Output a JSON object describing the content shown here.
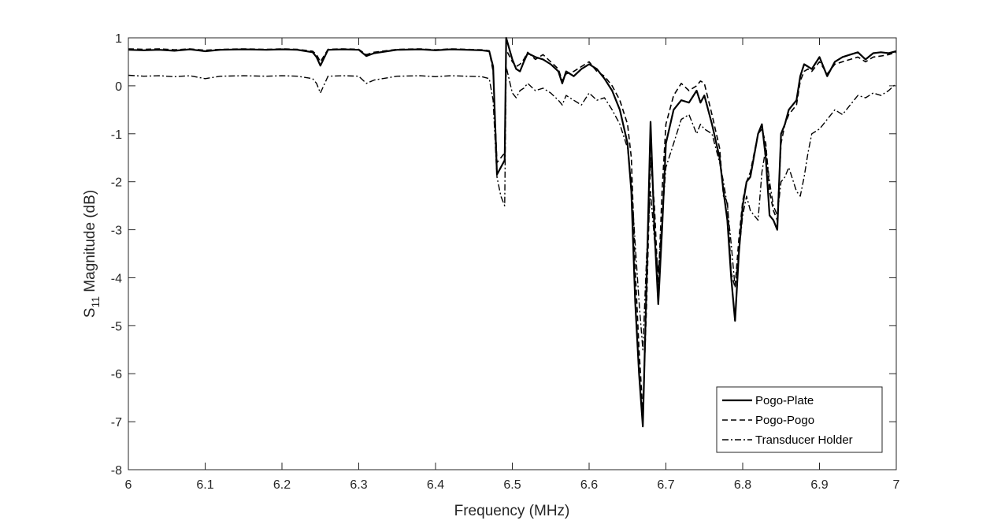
{
  "chart_data": {
    "type": "line",
    "title": "",
    "xlabel": "Frequency (MHz)",
    "ylabel": {
      "base": "S",
      "sub": "11",
      "rest": " Magnitude (dB)"
    },
    "xlim": [
      6,
      7
    ],
    "ylim": [
      -8,
      1
    ],
    "xticks": [
      "6",
      "6.1",
      "6.2",
      "6.3",
      "6.4",
      "6.5",
      "6.6",
      "6.7",
      "6.8",
      "6.9",
      "7"
    ],
    "yticks": [
      "-8",
      "-7",
      "-6",
      "-5",
      "-4",
      "-3",
      "-2",
      "-1",
      "0",
      "1"
    ],
    "grid": false,
    "legend_position": "bottom-right",
    "series": [
      {
        "name": "Pogo-Plate",
        "style": "solid",
        "x": [
          6.0,
          6.02,
          6.04,
          6.06,
          6.08,
          6.1,
          6.12,
          6.15,
          6.18,
          6.2,
          6.22,
          6.24,
          6.245,
          6.25,
          6.26,
          6.28,
          6.3,
          6.31,
          6.32,
          6.35,
          6.38,
          6.4,
          6.42,
          6.44,
          6.46,
          6.47,
          6.475,
          6.48,
          6.485,
          6.49,
          6.492,
          6.5,
          6.505,
          6.51,
          6.515,
          6.52,
          6.53,
          6.54,
          6.55,
          6.56,
          6.565,
          6.57,
          6.58,
          6.59,
          6.6,
          6.61,
          6.62,
          6.63,
          6.64,
          6.65,
          6.655,
          6.66,
          6.665,
          6.67,
          6.675,
          6.68,
          6.685,
          6.69,
          6.695,
          6.7,
          6.71,
          6.72,
          6.73,
          6.74,
          6.745,
          6.75,
          6.76,
          6.77,
          6.775,
          6.78,
          6.785,
          6.79,
          6.795,
          6.8,
          6.805,
          6.81,
          6.82,
          6.825,
          6.83,
          6.835,
          6.84,
          6.845,
          6.85,
          6.855,
          6.86,
          6.87,
          6.875,
          6.88,
          6.885,
          6.89,
          6.9,
          6.91,
          6.92,
          6.93,
          6.94,
          6.95,
          6.96,
          6.97,
          6.98,
          6.99,
          7.0
        ],
        "y": [
          0.75,
          0.74,
          0.75,
          0.73,
          0.76,
          0.72,
          0.75,
          0.76,
          0.75,
          0.76,
          0.75,
          0.7,
          0.6,
          0.42,
          0.75,
          0.76,
          0.75,
          0.62,
          0.68,
          0.75,
          0.76,
          0.74,
          0.76,
          0.75,
          0.74,
          0.72,
          0.4,
          -1.85,
          -1.7,
          -1.55,
          1.0,
          0.55,
          0.35,
          0.3,
          0.5,
          0.68,
          0.6,
          0.55,
          0.45,
          0.3,
          0.05,
          0.3,
          0.2,
          0.35,
          0.45,
          0.35,
          0.15,
          -0.1,
          -0.5,
          -1.2,
          -2.2,
          -4.5,
          -6.0,
          -7.1,
          -4.0,
          -0.75,
          -3.0,
          -4.55,
          -3.0,
          -1.2,
          -0.5,
          -0.3,
          -0.35,
          -0.1,
          -0.35,
          -0.2,
          -0.8,
          -1.5,
          -2.2,
          -2.8,
          -4.0,
          -4.9,
          -3.5,
          -2.5,
          -2.0,
          -1.9,
          -1.0,
          -0.8,
          -1.5,
          -2.7,
          -2.8,
          -3.0,
          -1.0,
          -0.8,
          -0.5,
          -0.3,
          0.2,
          0.45,
          0.4,
          0.35,
          0.6,
          0.2,
          0.5,
          0.6,
          0.65,
          0.7,
          0.55,
          0.68,
          0.7,
          0.68,
          0.72
        ]
      },
      {
        "name": "Pogo-Pogo",
        "style": "dashed",
        "x": [
          6.0,
          6.02,
          6.04,
          6.06,
          6.08,
          6.1,
          6.12,
          6.15,
          6.18,
          6.2,
          6.22,
          6.24,
          6.245,
          6.25,
          6.26,
          6.28,
          6.3,
          6.31,
          6.32,
          6.35,
          6.38,
          6.4,
          6.42,
          6.44,
          6.46,
          6.47,
          6.475,
          6.48,
          6.485,
          6.49,
          6.492,
          6.5,
          6.505,
          6.51,
          6.515,
          6.52,
          6.53,
          6.54,
          6.55,
          6.56,
          6.565,
          6.57,
          6.58,
          6.59,
          6.6,
          6.61,
          6.62,
          6.63,
          6.64,
          6.65,
          6.655,
          6.66,
          6.665,
          6.67,
          6.675,
          6.68,
          6.685,
          6.69,
          6.695,
          6.7,
          6.71,
          6.72,
          6.73,
          6.74,
          6.745,
          6.75,
          6.76,
          6.77,
          6.775,
          6.78,
          6.785,
          6.79,
          6.795,
          6.8,
          6.805,
          6.81,
          6.82,
          6.825,
          6.83,
          6.835,
          6.84,
          6.845,
          6.85,
          6.855,
          6.86,
          6.87,
          6.875,
          6.88,
          6.885,
          6.89,
          6.9,
          6.91,
          6.92,
          6.93,
          6.94,
          6.95,
          6.96,
          6.97,
          6.98,
          6.99,
          7.0
        ],
        "y": [
          0.77,
          0.76,
          0.77,
          0.75,
          0.77,
          0.74,
          0.76,
          0.77,
          0.76,
          0.77,
          0.76,
          0.72,
          0.65,
          0.5,
          0.76,
          0.77,
          0.76,
          0.65,
          0.7,
          0.76,
          0.77,
          0.75,
          0.77,
          0.76,
          0.75,
          0.73,
          0.3,
          -1.6,
          -1.5,
          -1.4,
          0.75,
          0.5,
          0.4,
          0.45,
          0.55,
          0.7,
          0.55,
          0.65,
          0.5,
          0.35,
          0.1,
          0.25,
          0.3,
          0.4,
          0.5,
          0.3,
          0.2,
          0.0,
          -0.3,
          -0.8,
          -1.5,
          -3.8,
          -5.5,
          -6.8,
          -4.5,
          -1.5,
          -2.5,
          -4.2,
          -2.2,
          -0.8,
          -0.2,
          0.05,
          -0.1,
          0.0,
          0.1,
          0.05,
          -0.6,
          -1.3,
          -2.3,
          -2.4,
          -3.9,
          -4.2,
          -3.2,
          -2.4,
          -2.0,
          -1.8,
          -1.0,
          -0.9,
          -1.2,
          -2.2,
          -2.6,
          -2.8,
          -1.2,
          -0.8,
          -0.6,
          -0.4,
          0.1,
          0.3,
          0.35,
          0.3,
          0.5,
          0.25,
          0.45,
          0.5,
          0.55,
          0.6,
          0.5,
          0.6,
          0.62,
          0.65,
          0.7
        ]
      },
      {
        "name": "Transducer Holder",
        "style": "dashdot",
        "x": [
          6.0,
          6.02,
          6.04,
          6.06,
          6.08,
          6.1,
          6.12,
          6.15,
          6.18,
          6.2,
          6.22,
          6.24,
          6.245,
          6.25,
          6.26,
          6.28,
          6.3,
          6.31,
          6.32,
          6.35,
          6.38,
          6.4,
          6.42,
          6.44,
          6.46,
          6.47,
          6.475,
          6.48,
          6.485,
          6.49,
          6.492,
          6.5,
          6.505,
          6.51,
          6.515,
          6.52,
          6.53,
          6.54,
          6.55,
          6.56,
          6.565,
          6.57,
          6.58,
          6.59,
          6.6,
          6.61,
          6.62,
          6.63,
          6.64,
          6.65,
          6.655,
          6.66,
          6.665,
          6.67,
          6.675,
          6.68,
          6.685,
          6.69,
          6.695,
          6.7,
          6.71,
          6.72,
          6.73,
          6.74,
          6.745,
          6.75,
          6.76,
          6.77,
          6.775,
          6.78,
          6.785,
          6.79,
          6.795,
          6.8,
          6.805,
          6.81,
          6.82,
          6.825,
          6.83,
          6.835,
          6.84,
          6.845,
          6.85,
          6.855,
          6.86,
          6.87,
          6.875,
          6.88,
          6.885,
          6.89,
          6.9,
          6.91,
          6.92,
          6.93,
          6.94,
          6.95,
          6.96,
          6.97,
          6.98,
          6.99,
          7.0
        ],
        "y": [
          0.22,
          0.2,
          0.21,
          0.19,
          0.21,
          0.15,
          0.2,
          0.21,
          0.2,
          0.21,
          0.2,
          0.15,
          0.05,
          -0.15,
          0.2,
          0.21,
          0.2,
          0.05,
          0.12,
          0.2,
          0.21,
          0.19,
          0.21,
          0.2,
          0.19,
          0.15,
          -0.3,
          -1.9,
          -2.3,
          -2.5,
          0.4,
          -0.15,
          -0.25,
          -0.1,
          -0.05,
          0.05,
          -0.1,
          -0.05,
          -0.15,
          -0.3,
          -0.4,
          -0.2,
          -0.3,
          -0.4,
          -0.15,
          -0.3,
          -0.25,
          -0.5,
          -0.8,
          -1.3,
          -2.0,
          -3.3,
          -4.5,
          -5.5,
          -3.5,
          -2.2,
          -3.2,
          -3.9,
          -2.8,
          -1.7,
          -1.2,
          -0.7,
          -0.6,
          -1.0,
          -0.8,
          -0.9,
          -1.0,
          -1.6,
          -2.0,
          -2.5,
          -3.3,
          -4.2,
          -3.5,
          -2.7,
          -2.3,
          -2.6,
          -2.8,
          -1.8,
          -1.3,
          -2.0,
          -2.5,
          -2.7,
          -2.0,
          -1.9,
          -1.7,
          -2.2,
          -2.3,
          -1.9,
          -1.4,
          -1.0,
          -0.9,
          -0.7,
          -0.5,
          -0.6,
          -0.4,
          -0.2,
          -0.25,
          -0.15,
          -0.2,
          -0.1,
          0.05
        ]
      }
    ]
  }
}
